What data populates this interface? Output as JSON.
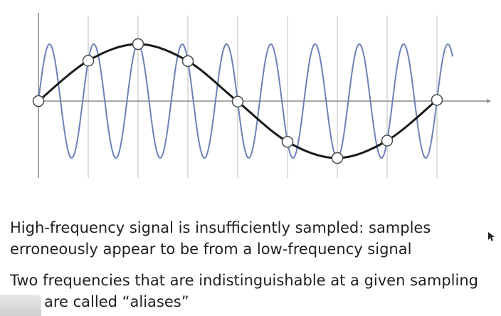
{
  "text": {
    "line1": "High-frequency signal is insufficiently sampled: samples",
    "line2": "erroneously appear to be from a low-frequency signal",
    "line3": "Two frequencies that are indistinguishable at a given sampling",
    "line4": "are called “aliases”"
  },
  "diagram": {
    "colors": {
      "high_freq": "#6f80b8",
      "low_freq": "#1a1a1a",
      "axis": "#8a8a8a",
      "sample_lines": "#c7c7c7",
      "sample_marker_fill": "#ffffff",
      "sample_marker_stroke": "#4a4a4a"
    },
    "sample_count": 9
  }
}
